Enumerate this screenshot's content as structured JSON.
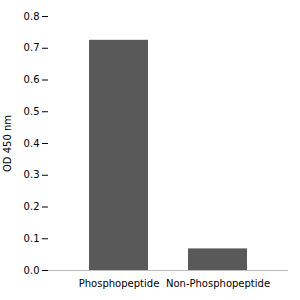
{
  "chart_data": {
    "type": "bar",
    "categories": [
      "Phosphopeptide",
      "Non-Phosphopeptide"
    ],
    "values": [
      0.725,
      0.068
    ],
    "color": "#595959",
    "ylabel": "OD 450 nm",
    "ylim": [
      0,
      0.8
    ],
    "yticks": [
      {
        "value": 0,
        "label": "0.0"
      },
      0.1,
      0.2,
      0.3,
      0.4,
      0.5,
      0.6,
      0.7,
      0.8
    ],
    "grid": false
  }
}
